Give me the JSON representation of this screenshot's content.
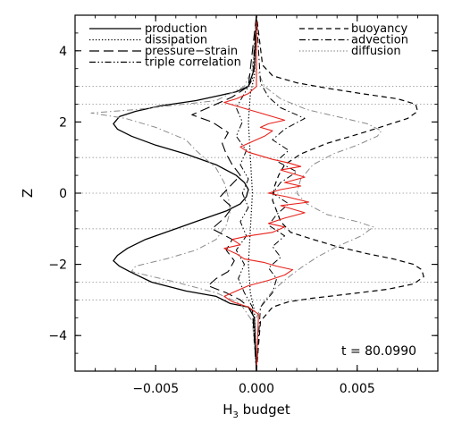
{
  "chart_data": {
    "type": "line",
    "title": "",
    "xlabel": "H",
    "xlabel_subscript": "3",
    "xlabel_suffix": " budget",
    "ylabel": "Z",
    "xlim": [
      -0.009,
      0.009
    ],
    "ylim": [
      -5,
      5
    ],
    "x_ticks": [
      -0.005,
      0.0,
      0.005
    ],
    "x_tick_labels": [
      "−0.005",
      "0.000",
      "0.005"
    ],
    "y_ticks": [
      -4,
      -2,
      0,
      2,
      4
    ],
    "y_tick_labels": [
      "−4",
      "−2",
      "0",
      "2",
      "4"
    ],
    "reference_lines_z": [
      3,
      2.5,
      1,
      -1,
      -2.5,
      -3
    ],
    "reference_line_zero": 0,
    "annotation": "t = 80.0990",
    "legend": {
      "left": [
        {
          "label": "production",
          "dash": "solid"
        },
        {
          "label": "dissipation",
          "dash": "dotted"
        },
        {
          "label": "pressure−strain",
          "dash": "longdash"
        },
        {
          "label": "triple correlation",
          "dash": "dashdotdot"
        }
      ],
      "right": [
        {
          "label": "buoyancy",
          "dash": "dashed"
        },
        {
          "label": "advection",
          "dash": "dashdot"
        },
        {
          "label": "diffusion",
          "dash": "dotted-gray"
        }
      ]
    },
    "colors": {
      "black": "#000000",
      "gray": "#8a8a8a",
      "red": "#e8221b",
      "ref": "#a0a0a0"
    },
    "series": [
      {
        "key": "production",
        "color": "#000000",
        "dash": "solid",
        "width": 1.3,
        "points": [
          [
            0,
            -5
          ],
          [
            -0.0001,
            -3.5
          ],
          [
            -0.0004,
            -3.2
          ],
          [
            -0.0013,
            -3.1
          ],
          [
            -0.002,
            -2.9
          ],
          [
            -0.0035,
            -2.75
          ],
          [
            -0.0052,
            -2.5
          ],
          [
            -0.0063,
            -2.2
          ],
          [
            -0.0068,
            -2.05
          ],
          [
            -0.0071,
            -1.9
          ],
          [
            -0.0069,
            -1.75
          ],
          [
            -0.0064,
            -1.55
          ],
          [
            -0.0055,
            -1.3
          ],
          [
            -0.0045,
            -1.1
          ],
          [
            -0.003,
            -0.8
          ],
          [
            -0.0015,
            -0.5
          ],
          [
            -0.0008,
            -0.3
          ],
          [
            -0.0005,
            -0.1
          ],
          [
            -0.0004,
            0.1
          ],
          [
            -0.0006,
            0.3
          ],
          [
            -0.001,
            0.5
          ],
          [
            -0.002,
            0.8
          ],
          [
            -0.0035,
            1.1
          ],
          [
            -0.005,
            1.35
          ],
          [
            -0.0062,
            1.6
          ],
          [
            -0.0069,
            1.8
          ],
          [
            -0.0071,
            1.95
          ],
          [
            -0.0068,
            2.15
          ],
          [
            -0.006,
            2.3
          ],
          [
            -0.0048,
            2.45
          ],
          [
            -0.003,
            2.6
          ],
          [
            -0.0018,
            2.75
          ],
          [
            -0.001,
            2.85
          ],
          [
            -0.0004,
            3.0
          ],
          [
            -0.0001,
            3.5
          ],
          [
            0,
            5
          ]
        ]
      },
      {
        "key": "buoyancy",
        "color": "#000000",
        "dash": "dashed",
        "width": 1.2,
        "points": [
          [
            0,
            -5
          ],
          [
            0.0002,
            -3.6
          ],
          [
            0.0008,
            -3.2
          ],
          [
            0.0016,
            -3.05
          ],
          [
            0.0028,
            -2.95
          ],
          [
            0.0048,
            -2.82
          ],
          [
            0.0065,
            -2.7
          ],
          [
            0.0078,
            -2.55
          ],
          [
            0.0083,
            -2.35
          ],
          [
            0.0082,
            -2.15
          ],
          [
            0.0078,
            -2.0
          ],
          [
            0.0068,
            -1.85
          ],
          [
            0.0055,
            -1.7
          ],
          [
            0.004,
            -1.5
          ],
          [
            0.0028,
            -1.3
          ],
          [
            0.0017,
            -1.1
          ],
          [
            0.0012,
            -0.8
          ],
          [
            0.001,
            -0.5
          ],
          [
            0.0008,
            -0.2
          ],
          [
            0.0009,
            0.2
          ],
          [
            0.0011,
            0.5
          ],
          [
            0.0014,
            0.8
          ],
          [
            0.0022,
            1.1
          ],
          [
            0.0035,
            1.4
          ],
          [
            0.005,
            1.65
          ],
          [
            0.0064,
            1.9
          ],
          [
            0.0075,
            2.1
          ],
          [
            0.008,
            2.3
          ],
          [
            0.0079,
            2.5
          ],
          [
            0.007,
            2.65
          ],
          [
            0.0052,
            2.8
          ],
          [
            0.0035,
            2.95
          ],
          [
            0.002,
            3.1
          ],
          [
            0.0008,
            3.3
          ],
          [
            0.0003,
            3.6
          ],
          [
            0,
            5
          ]
        ]
      },
      {
        "key": "diffusion",
        "color": "#8a8a8a",
        "dash": "dashdot",
        "width": 1.0,
        "points": [
          [
            0,
            -5
          ],
          [
            -0.0002,
            -3.6
          ],
          [
            -0.0008,
            -3.1
          ],
          [
            -0.002,
            -2.8
          ],
          [
            -0.004,
            -2.5
          ],
          [
            -0.0055,
            -2.3
          ],
          [
            -0.0062,
            -2.2
          ],
          [
            -0.006,
            -2.05
          ],
          [
            -0.0045,
            -1.85
          ],
          [
            -0.003,
            -1.6
          ],
          [
            -0.002,
            -1.3
          ],
          [
            -0.0015,
            -0.9
          ],
          [
            -0.0013,
            -0.5
          ],
          [
            -0.0014,
            -0.1
          ],
          [
            -0.0016,
            0.3
          ],
          [
            -0.002,
            0.7
          ],
          [
            -0.0026,
            1.0
          ],
          [
            -0.003,
            1.2
          ],
          [
            -0.0035,
            1.5
          ],
          [
            -0.005,
            1.85
          ],
          [
            -0.0065,
            2.1
          ],
          [
            -0.0082,
            2.25
          ],
          [
            -0.006,
            2.35
          ],
          [
            -0.002,
            2.6
          ],
          [
            -0.0006,
            3.0
          ],
          [
            -0.0002,
            3.5
          ],
          [
            0,
            5
          ]
        ]
      },
      {
        "key": "diffusion-right",
        "color": "#8a8a8a",
        "dash": "dashdot",
        "width": 1.0,
        "points": [
          [
            0,
            -3.5
          ],
          [
            0.0003,
            -3.1
          ],
          [
            0.0008,
            -2.75
          ],
          [
            0.0015,
            -2.4
          ],
          [
            0.0022,
            -2.1
          ],
          [
            0.003,
            -1.8
          ],
          [
            0.004,
            -1.5
          ],
          [
            0.0052,
            -1.2
          ],
          [
            0.0058,
            -0.95
          ],
          [
            0.005,
            -0.8
          ],
          [
            0.0035,
            -0.6
          ],
          [
            0.0025,
            -0.3
          ],
          [
            0.002,
            0.0
          ],
          [
            0.0022,
            0.4
          ],
          [
            0.0028,
            0.8
          ],
          [
            0.0038,
            1.1
          ],
          [
            0.005,
            1.35
          ],
          [
            0.006,
            1.6
          ],
          [
            0.0062,
            1.75
          ],
          [
            0.0055,
            1.95
          ],
          [
            0.004,
            2.15
          ],
          [
            0.0025,
            2.35
          ],
          [
            0.0012,
            2.65
          ],
          [
            0.0004,
            3.0
          ],
          [
            0,
            3.5
          ]
        ]
      },
      {
        "key": "pressure-strain",
        "color": "#000000",
        "dash": "longdash",
        "width": 1.1,
        "points": [
          [
            0,
            -5
          ],
          [
            -0.0002,
            -3.3
          ],
          [
            -0.0008,
            -3.0
          ],
          [
            -0.0015,
            -2.8
          ],
          [
            -0.0024,
            -2.6
          ],
          [
            -0.002,
            -2.4
          ],
          [
            -0.0014,
            -2.2
          ],
          [
            -0.0011,
            -1.9
          ],
          [
            -0.0015,
            -1.6
          ],
          [
            -0.0012,
            -1.3
          ],
          [
            -0.0022,
            -1.0
          ],
          [
            -0.0016,
            -0.7
          ],
          [
            -0.0012,
            -0.4
          ],
          [
            -0.0018,
            -0.1
          ],
          [
            -0.0013,
            0.2
          ],
          [
            -0.0008,
            0.5
          ],
          [
            -0.0012,
            0.8
          ],
          [
            -0.0015,
            1.1
          ],
          [
            -0.0017,
            1.4
          ],
          [
            -0.0014,
            1.7
          ],
          [
            -0.0022,
            2.0
          ],
          [
            -0.0032,
            2.2
          ],
          [
            -0.0024,
            2.4
          ],
          [
            -0.0012,
            2.7
          ],
          [
            -0.0004,
            3.0
          ],
          [
            0,
            5
          ]
        ]
      },
      {
        "key": "advection",
        "color": "#000000",
        "dash": "dashdot",
        "width": 1.0,
        "points": [
          [
            0,
            -5
          ],
          [
            0.0002,
            -3.2
          ],
          [
            0.0008,
            -2.8
          ],
          [
            0.001,
            -2.4
          ],
          [
            0.0006,
            -2.1
          ],
          [
            0.0012,
            -1.8
          ],
          [
            0.0008,
            -1.5
          ],
          [
            0.0014,
            -1.2
          ],
          [
            0.0006,
            -0.9
          ],
          [
            0.001,
            -0.6
          ],
          [
            0.0016,
            -0.3
          ],
          [
            0.0008,
            0.0
          ],
          [
            0.0012,
            0.3
          ],
          [
            0.002,
            0.6
          ],
          [
            0.001,
            0.9
          ],
          [
            0.0016,
            1.2
          ],
          [
            0.0008,
            1.5
          ],
          [
            0.0014,
            1.8
          ],
          [
            0.0024,
            2.1
          ],
          [
            0.0012,
            2.4
          ],
          [
            0.0006,
            2.7
          ],
          [
            0.0002,
            3.1
          ],
          [
            0,
            5
          ]
        ]
      },
      {
        "key": "triple-correlation",
        "color": "#000000",
        "dash": "dashdotdot",
        "width": 1.0,
        "points": [
          [
            0,
            -5
          ],
          [
            -0.0002,
            -3.2
          ],
          [
            -0.0006,
            -2.8
          ],
          [
            -0.0009,
            -2.4
          ],
          [
            -0.0006,
            -2.0
          ],
          [
            -0.001,
            -1.6
          ],
          [
            -0.0005,
            -1.2
          ],
          [
            -0.0008,
            -0.8
          ],
          [
            -0.0004,
            -0.4
          ],
          [
            -0.0007,
            0.0
          ],
          [
            -0.0004,
            0.4
          ],
          [
            -0.0008,
            0.8
          ],
          [
            -0.0005,
            1.2
          ],
          [
            -0.001,
            1.6
          ],
          [
            -0.0007,
            2.0
          ],
          [
            -0.001,
            2.4
          ],
          [
            -0.0006,
            2.8
          ],
          [
            -0.0002,
            3.2
          ],
          [
            0,
            5
          ]
        ]
      },
      {
        "key": "dissipation",
        "color": "#000000",
        "dash": "dotted",
        "width": 1.2,
        "points": [
          [
            0,
            -5
          ],
          [
            -0.0001,
            -3.3
          ],
          [
            -0.0003,
            -2.8
          ],
          [
            -0.0004,
            -2.0
          ],
          [
            -0.0003,
            -1.0
          ],
          [
            -0.0002,
            0.0
          ],
          [
            -0.0003,
            1.0
          ],
          [
            -0.0004,
            2.0
          ],
          [
            -0.0003,
            2.8
          ],
          [
            -0.0001,
            3.3
          ],
          [
            0,
            5
          ]
        ]
      },
      {
        "key": "sum",
        "color": "#e8221b",
        "dash": "solid",
        "width": 1.1,
        "points": [
          [
            0,
            -5
          ],
          [
            0.0001,
            -3.4
          ],
          [
            -0.0004,
            -3.2
          ],
          [
            -0.0012,
            -3.05
          ],
          [
            -0.0016,
            -2.9
          ],
          [
            -0.001,
            -2.75
          ],
          [
            -0.0004,
            -2.6
          ],
          [
            0.0006,
            -2.45
          ],
          [
            0.0014,
            -2.3
          ],
          [
            0.0018,
            -2.15
          ],
          [
            0.001,
            -2.05
          ],
          [
            0.0004,
            -1.95
          ],
          [
            -0.0006,
            -1.85
          ],
          [
            -0.001,
            -1.7
          ],
          [
            -0.0016,
            -1.55
          ],
          [
            -0.0008,
            -1.45
          ],
          [
            -0.0012,
            -1.3
          ],
          [
            -0.0004,
            -1.2
          ],
          [
            0.0008,
            -1.1
          ],
          [
            0.0014,
            -0.95
          ],
          [
            0.0006,
            -0.85
          ],
          [
            0.0014,
            -0.7
          ],
          [
            0.0024,
            -0.55
          ],
          [
            0.0018,
            -0.45
          ],
          [
            0.0012,
            -0.35
          ],
          [
            0.0026,
            -0.25
          ],
          [
            0.0015,
            -0.1
          ],
          [
            0.0006,
            0.0
          ],
          [
            0.0012,
            0.1
          ],
          [
            0.0022,
            0.2
          ],
          [
            0.0014,
            0.3
          ],
          [
            0.0024,
            0.45
          ],
          [
            0.0018,
            0.55
          ],
          [
            0.0012,
            0.65
          ],
          [
            0.0022,
            0.75
          ],
          [
            0.0016,
            0.85
          ],
          [
            0.0008,
            0.95
          ],
          [
            0.0002,
            1.05
          ],
          [
            -0.0004,
            1.15
          ],
          [
            -0.0008,
            1.3
          ],
          [
            -0.0002,
            1.45
          ],
          [
            0.0004,
            1.6
          ],
          [
            0.0008,
            1.75
          ],
          [
            0.0002,
            1.85
          ],
          [
            0.0006,
            1.95
          ],
          [
            0.0014,
            2.05
          ],
          [
            0.0008,
            2.15
          ],
          [
            0.0002,
            2.25
          ],
          [
            -0.0004,
            2.35
          ],
          [
            -0.001,
            2.45
          ],
          [
            -0.0016,
            2.55
          ],
          [
            -0.001,
            2.65
          ],
          [
            -0.0004,
            2.8
          ],
          [
            0.0,
            3.0
          ],
          [
            0,
            5
          ]
        ]
      }
    ]
  }
}
